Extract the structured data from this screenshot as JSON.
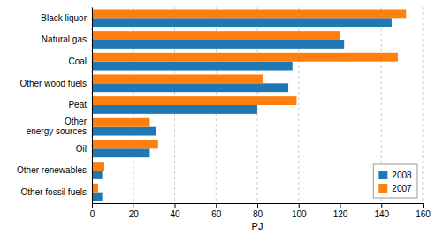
{
  "chart_data": {
    "type": "bar",
    "orientation": "horizontal",
    "categories": [
      "Black liquor",
      "Natural gas",
      "Coal",
      "Other wood fuels",
      "Peat",
      "Other\nenergy sources",
      "Oil",
      "Other renewables",
      "Other fossil fuels"
    ],
    "series": [
      {
        "name": "2008",
        "values": [
          145,
          122,
          97,
          95,
          80,
          31,
          28,
          5,
          5
        ]
      },
      {
        "name": "2007",
        "values": [
          152,
          120,
          148,
          83,
          99,
          28,
          32,
          6,
          3
        ]
      }
    ],
    "xlabel": "PJ",
    "xlim": [
      0,
      160
    ],
    "xticks": [
      0,
      20,
      40,
      60,
      80,
      100,
      120,
      140,
      160
    ],
    "grid": true,
    "legend": "lower right"
  }
}
